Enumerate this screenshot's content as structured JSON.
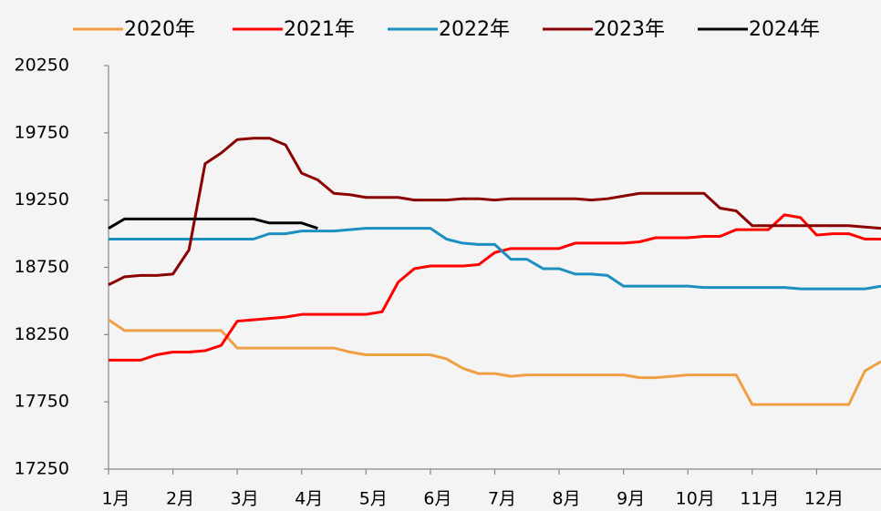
{
  "chart_data": {
    "type": "line",
    "x": [
      0,
      0.25,
      0.5,
      0.75,
      1,
      1.25,
      1.5,
      1.75,
      2,
      2.25,
      2.5,
      2.75,
      3,
      3.25,
      3.5,
      3.75,
      4,
      4.25,
      4.5,
      4.75,
      5,
      5.25,
      5.5,
      5.75,
      6,
      6.25,
      6.5,
      6.75,
      7,
      7.25,
      7.5,
      7.75,
      8,
      8.25,
      8.5,
      8.75,
      9,
      9.25,
      9.5,
      9.75,
      10,
      10.25,
      10.5,
      10.75,
      11,
      11.25,
      11.5,
      11.75,
      12
    ],
    "xlim": [
      0,
      12
    ],
    "xticks": [
      {
        "value": 0,
        "label": "1月"
      },
      {
        "value": 1,
        "label": "2月"
      },
      {
        "value": 2,
        "label": "3月"
      },
      {
        "value": 3,
        "label": "4月"
      },
      {
        "value": 4,
        "label": "5月"
      },
      {
        "value": 5,
        "label": "6月"
      },
      {
        "value": 6,
        "label": "7月"
      },
      {
        "value": 7,
        "label": "8月"
      },
      {
        "value": 8,
        "label": "9月"
      },
      {
        "value": 9,
        "label": "10月"
      },
      {
        "value": 10,
        "label": "11月"
      },
      {
        "value": 11,
        "label": "12月"
      }
    ],
    "ylim": [
      17250,
      20250
    ],
    "yticks": [
      17250,
      17750,
      18250,
      18750,
      19250,
      19750,
      20250
    ],
    "legend": "top",
    "series": [
      {
        "name": "2020年",
        "color": "#f0a044",
        "values": [
          18360,
          18280,
          18280,
          18280,
          18280,
          18280,
          18280,
          18280,
          18150,
          18150,
          18150,
          18150,
          18150,
          18150,
          18150,
          18120,
          18100,
          18100,
          18100,
          18100,
          18100,
          18070,
          18000,
          17960,
          17960,
          17940,
          17950,
          17950,
          17950,
          17950,
          17950,
          17950,
          17950,
          17930,
          17930,
          17940,
          17950,
          17950,
          17950,
          17950,
          17730,
          17730,
          17730,
          17730,
          17730,
          17730,
          17730,
          17980,
          18050
        ]
      },
      {
        "name": "2021年",
        "color": "#ff0000",
        "values": [
          18060,
          18060,
          18060,
          18100,
          18120,
          18120,
          18130,
          18170,
          18350,
          18360,
          18370,
          18380,
          18400,
          18400,
          18400,
          18400,
          18400,
          18420,
          18640,
          18740,
          18760,
          18760,
          18760,
          18770,
          18860,
          18890,
          18890,
          18890,
          18890,
          18930,
          18930,
          18930,
          18930,
          18940,
          18970,
          18970,
          18970,
          18980,
          18980,
          19030,
          19030,
          19030,
          19140,
          19120,
          18990,
          19000,
          19000,
          18960,
          18960
        ]
      },
      {
        "name": "2022年",
        "color": "#1a8fc0",
        "values": [
          18960,
          18960,
          18960,
          18960,
          18960,
          18960,
          18960,
          18960,
          18960,
          18960,
          19000,
          19000,
          19020,
          19020,
          19020,
          19030,
          19040,
          19040,
          19040,
          19040,
          19040,
          18960,
          18930,
          18920,
          18920,
          18810,
          18810,
          18740,
          18740,
          18700,
          18700,
          18690,
          18610,
          18610,
          18610,
          18610,
          18610,
          18600,
          18600,
          18600,
          18600,
          18600,
          18600,
          18590,
          18590,
          18590,
          18590,
          18590,
          18610
        ]
      },
      {
        "name": "2023年",
        "color": "#8b0000",
        "values": [
          18620,
          18680,
          18690,
          18690,
          18700,
          18880,
          19520,
          19600,
          19700,
          19710,
          19710,
          19660,
          19450,
          19400,
          19300,
          19290,
          19270,
          19270,
          19270,
          19250,
          19250,
          19250,
          19260,
          19260,
          19250,
          19260,
          19260,
          19260,
          19260,
          19260,
          19250,
          19260,
          19280,
          19300,
          19300,
          19300,
          19300,
          19300,
          19190,
          19170,
          19060,
          19060,
          19060,
          19060,
          19060,
          19060,
          19060,
          19050,
          19040
        ]
      },
      {
        "name": "2024年",
        "color": "#000000",
        "values": [
          19040,
          19110,
          19110,
          19110,
          19110,
          19110,
          19110,
          19110,
          19110,
          19110,
          19080,
          19080,
          19080,
          19040,
          null,
          null,
          null,
          null,
          null,
          null,
          null,
          null,
          null,
          null,
          null,
          null,
          null,
          null,
          null,
          null,
          null,
          null,
          null,
          null,
          null,
          null,
          null,
          null,
          null,
          null,
          null,
          null,
          null,
          null,
          null,
          null,
          null,
          null,
          null
        ]
      }
    ]
  }
}
